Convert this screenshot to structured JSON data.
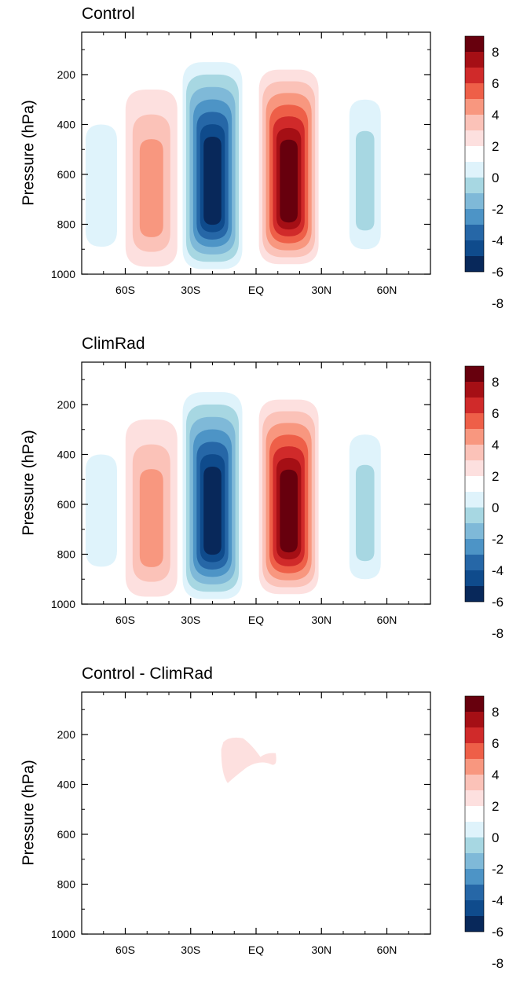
{
  "colors": {
    "pos": [
      "#fde0df",
      "#fbc2b8",
      "#f8977f",
      "#ee5f48",
      "#d02a2a",
      "#a50f15",
      "#67000d"
    ],
    "neg": [
      "#dff3fb",
      "#a7d7e2",
      "#7fb9d8",
      "#4d94c6",
      "#2667a7",
      "#0f4b8c",
      "#08285a"
    ]
  },
  "chart_data": [
    {
      "type": "contour",
      "title": "Control",
      "ylabel": "Pressure (hPa)",
      "xlabel": "",
      "x_ticks": [
        "60S",
        "30S",
        "EQ",
        "30N",
        "60N"
      ],
      "x_tick_values": [
        -60,
        -30,
        0,
        30,
        60
      ],
      "xlim": [
        -80,
        80
      ],
      "y_ticks": [
        200,
        400,
        600,
        800,
        1000
      ],
      "ylim": [
        1000,
        30
      ],
      "colorbar": {
        "labels": [
          "8",
          "6",
          "4",
          "2",
          "0",
          "-2",
          "-4",
          "-6",
          "-8"
        ],
        "levels": [
          -10,
          -8,
          -6,
          -4,
          -2,
          0,
          2,
          4,
          6,
          8,
          10
        ]
      },
      "features": [
        {
          "sign": "pos",
          "center_lat": -48,
          "peak": 3.5,
          "p_top": 260,
          "p_bottom": 970
        },
        {
          "sign": "neg",
          "center_lat": -20,
          "peak": -9.5,
          "p_top": 150,
          "p_bottom": 980
        },
        {
          "sign": "pos",
          "center_lat": 15,
          "peak": 9.0,
          "p_top": 180,
          "p_bottom": 960
        },
        {
          "sign": "neg",
          "center_lat": 50,
          "peak": -1.5,
          "p_top": 300,
          "p_bottom": 900
        },
        {
          "sign": "neg",
          "center_lat": -71,
          "peak": -1.0,
          "p_top": 400,
          "p_bottom": 890
        }
      ]
    },
    {
      "type": "contour",
      "title": "ClimRad",
      "ylabel": "Pressure (hPa)",
      "xlabel": "",
      "x_ticks": [
        "60S",
        "30S",
        "EQ",
        "30N",
        "60N"
      ],
      "x_tick_values": [
        -60,
        -30,
        0,
        30,
        60
      ],
      "xlim": [
        -80,
        80
      ],
      "y_ticks": [
        200,
        400,
        600,
        800,
        1000
      ],
      "ylim": [
        1000,
        30
      ],
      "colorbar": {
        "labels": [
          "8",
          "6",
          "4",
          "2",
          "0",
          "-2",
          "-4",
          "-6",
          "-8"
        ],
        "levels": [
          -10,
          -8,
          -6,
          -4,
          -2,
          0,
          2,
          4,
          6,
          8,
          10
        ]
      },
      "features": [
        {
          "sign": "pos",
          "center_lat": -48,
          "peak": 3.5,
          "p_top": 260,
          "p_bottom": 970
        },
        {
          "sign": "neg",
          "center_lat": -20,
          "peak": -9.5,
          "p_top": 150,
          "p_bottom": 980
        },
        {
          "sign": "pos",
          "center_lat": 15,
          "peak": 9.0,
          "p_top": 180,
          "p_bottom": 960
        },
        {
          "sign": "neg",
          "center_lat": 50,
          "peak": -1.5,
          "p_top": 320,
          "p_bottom": 900
        },
        {
          "sign": "neg",
          "center_lat": -71,
          "peak": -1.0,
          "p_top": 400,
          "p_bottom": 850
        }
      ]
    },
    {
      "type": "contour",
      "title": "Control - ClimRad",
      "ylabel": "Pressure (hPa)",
      "xlabel": "",
      "x_ticks": [
        "60S",
        "30S",
        "EQ",
        "30N",
        "60N"
      ],
      "x_tick_values": [
        -60,
        -30,
        0,
        30,
        60
      ],
      "xlim": [
        -80,
        80
      ],
      "y_ticks": [
        200,
        400,
        600,
        800,
        1000
      ],
      "ylim": [
        1000,
        30
      ],
      "colorbar": {
        "labels": [
          "8",
          "6",
          "4",
          "2",
          "0",
          "-2",
          "-4",
          "-6",
          "-8"
        ],
        "levels": [
          -10,
          -8,
          -6,
          -4,
          -2,
          0,
          2,
          4,
          6,
          8,
          10
        ]
      },
      "features": [
        {
          "sign": "pos",
          "center_lat": -10,
          "peak": 1.0,
          "p_top": 210,
          "p_bottom": 400
        }
      ]
    }
  ]
}
